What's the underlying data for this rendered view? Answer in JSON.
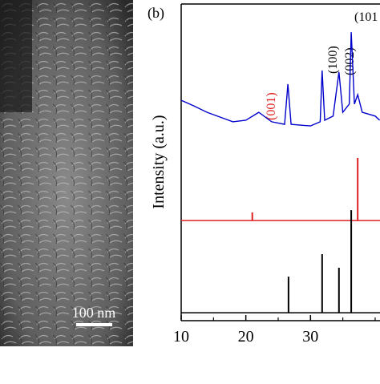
{
  "chart_data": {
    "type": "line",
    "panel_label": "(b)",
    "ylabel": "Intensity (a.u.)",
    "scale_bar": "100 nm",
    "annotations": [
      "(001)",
      "(100)",
      "(002)",
      "(101"
    ],
    "xlim": [
      10,
      40.75
    ],
    "xticks": [
      10,
      20,
      30
    ],
    "xticks_minor": [
      15,
      25,
      35,
      40
    ],
    "ylim": [
      0,
      100
    ],
    "series": [
      {
        "color": "#0000cc",
        "style": "line",
        "x": [
          10,
          12,
          14,
          16,
          18,
          20,
          22,
          24,
          26,
          26.5,
          27,
          30,
          31.5,
          31.8,
          32.2,
          33.5,
          34.4,
          35,
          36,
          36.3,
          36.8,
          37.3,
          38,
          40,
          40.7
        ],
        "values": [
          69.6,
          67.8,
          65.8,
          64.3,
          62.8,
          63.3,
          65.8,
          62.8,
          62.0,
          74.7,
          62.0,
          61.5,
          62.8,
          79.0,
          63.3,
          64.6,
          78.5,
          65.8,
          68.4,
          91.1,
          68.4,
          71.4,
          65.8,
          64.6,
          63.3
        ]
      },
      {
        "color": "#e02020",
        "style": "stick",
        "baseline": 31.6,
        "x": [
          21,
          37.3
        ],
        "values": [
          34.2,
          51.4
        ]
      },
      {
        "color": "#000000",
        "style": "stick",
        "baseline": 2.5,
        "x": [
          26.6,
          31.8,
          34.4,
          36.3
        ],
        "values": [
          13.9,
          21.0,
          16.7,
          34.9
        ]
      }
    ]
  }
}
